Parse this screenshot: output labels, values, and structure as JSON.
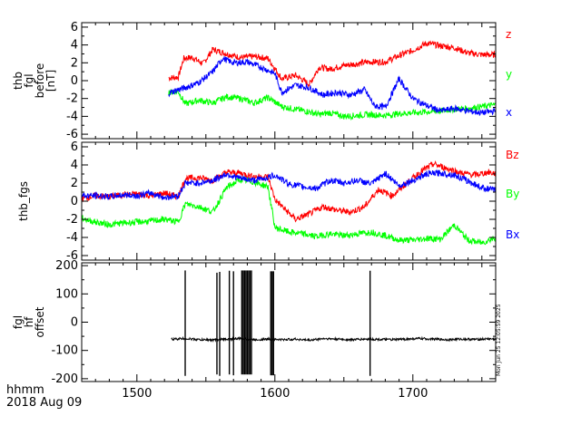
{
  "chart_data": [
    {
      "type": "line",
      "ylabel": [
        "thb",
        "fgl",
        "before",
        "[nT]"
      ],
      "ylim": [
        -6.5,
        6.5
      ],
      "yticks": [
        -6,
        -4,
        -2,
        0,
        2,
        4,
        6
      ],
      "xlim": [
        1460,
        1760
      ],
      "series": [
        {
          "name": "z",
          "color": "#ff0000",
          "x": [
            1523,
            1530,
            1534,
            1540,
            1548,
            1555,
            1565,
            1575,
            1585,
            1595,
            1605,
            1615,
            1625,
            1632,
            1640,
            1650,
            1660,
            1668,
            1680,
            1690,
            1700,
            1710,
            1720,
            1730,
            1740,
            1750,
            1760
          ],
          "y": [
            0.3,
            0.4,
            2.5,
            2.6,
            1.9,
            3.5,
            3.0,
            2.6,
            2.7,
            2.5,
            0.2,
            0.6,
            -0.4,
            1.5,
            1.3,
            1.7,
            1.9,
            2.1,
            2.1,
            2.8,
            3.4,
            4.2,
            3.9,
            3.7,
            3.1,
            2.9,
            2.9
          ]
        },
        {
          "name": "y",
          "color": "#00ff00",
          "x": [
            1523,
            1530,
            1535,
            1545,
            1555,
            1565,
            1575,
            1585,
            1595,
            1605,
            1615,
            1625,
            1632,
            1640,
            1650,
            1660,
            1668,
            1680,
            1690,
            1700,
            1710,
            1720,
            1730,
            1740,
            1750,
            1760
          ],
          "y": [
            -1.3,
            -1.2,
            -2.6,
            -2.2,
            -2.5,
            -1.8,
            -2.0,
            -2.5,
            -1.9,
            -2.9,
            -3.2,
            -3.5,
            -3.8,
            -3.6,
            -4.0,
            -3.9,
            -3.8,
            -3.9,
            -3.7,
            -3.6,
            -3.5,
            -3.4,
            -3.2,
            -3.1,
            -2.9,
            -2.7
          ]
        },
        {
          "name": "x",
          "color": "#0000ff",
          "x": [
            1523,
            1530,
            1535,
            1545,
            1555,
            1562,
            1570,
            1580,
            1590,
            1600,
            1605,
            1615,
            1625,
            1635,
            1645,
            1655,
            1665,
            1672,
            1680,
            1690,
            1700,
            1710,
            1720,
            1730,
            1740,
            1750,
            1760
          ],
          "y": [
            -1.4,
            -1.0,
            -0.8,
            -0.2,
            1.0,
            2.5,
            2.0,
            2.1,
            1.5,
            0.8,
            -1.3,
            -0.5,
            -0.8,
            -1.6,
            -1.3,
            -1.6,
            -1.0,
            -2.8,
            -3.0,
            0.2,
            -2.0,
            -2.8,
            -3.4,
            -3.1,
            -3.4,
            -3.6,
            -3.4
          ]
        }
      ]
    },
    {
      "type": "line",
      "ylabel": [
        "thb_fgs"
      ],
      "ylim": [
        -6.5,
        6.5
      ],
      "yticks": [
        -6,
        -4,
        -2,
        0,
        2,
        4,
        6
      ],
      "xlim": [
        1460,
        1760
      ],
      "series": [
        {
          "name": "Bz",
          "color": "#ff0000",
          "x": [
            1460,
            1470,
            1480,
            1490,
            1500,
            1510,
            1520,
            1530,
            1535,
            1545,
            1555,
            1565,
            1575,
            1585,
            1595,
            1600,
            1608,
            1615,
            1625,
            1635,
            1645,
            1655,
            1665,
            1675,
            1685,
            1695,
            1705,
            1715,
            1725,
            1735,
            1745,
            1755,
            1760
          ],
          "y": [
            0.3,
            0.6,
            0.5,
            0.7,
            0.8,
            0.6,
            0.9,
            0.5,
            2.5,
            2.6,
            2.3,
            3.2,
            3.1,
            2.7,
            2.7,
            0.2,
            -1.0,
            -2.0,
            -1.4,
            -0.6,
            -1.0,
            -1.2,
            -0.6,
            1.3,
            0.6,
            1.9,
            3.2,
            4.1,
            3.6,
            3.1,
            2.9,
            3.2,
            3.0
          ]
        },
        {
          "name": "By",
          "color": "#00ff00",
          "x": [
            1460,
            1470,
            1480,
            1490,
            1500,
            1510,
            1520,
            1530,
            1535,
            1545,
            1555,
            1565,
            1575,
            1585,
            1595,
            1600,
            1610,
            1620,
            1630,
            1640,
            1650,
            1660,
            1670,
            1680,
            1690,
            1700,
            1710,
            1720,
            1730,
            1740,
            1750,
            1760
          ],
          "y": [
            -1.9,
            -2.3,
            -2.6,
            -2.4,
            -2.3,
            -2.2,
            -2.0,
            -2.3,
            -0.3,
            -0.6,
            -1.2,
            1.5,
            2.4,
            2.1,
            1.6,
            -2.9,
            -3.4,
            -3.6,
            -3.9,
            -3.6,
            -3.8,
            -3.6,
            -3.4,
            -3.8,
            -4.3,
            -4.3,
            -4.1,
            -4.2,
            -2.6,
            -4.3,
            -4.6,
            -4.0
          ]
        },
        {
          "name": "Bx",
          "color": "#0000ff",
          "x": [
            1460,
            1470,
            1480,
            1490,
            1500,
            1510,
            1520,
            1530,
            1535,
            1545,
            1555,
            1565,
            1575,
            1585,
            1595,
            1600,
            1610,
            1620,
            1630,
            1640,
            1650,
            1660,
            1670,
            1680,
            1690,
            1700,
            1710,
            1720,
            1730,
            1740,
            1750,
            1760
          ],
          "y": [
            0.6,
            0.6,
            0.5,
            0.7,
            0.6,
            0.9,
            0.4,
            0.6,
            2.0,
            2.0,
            2.3,
            3.0,
            2.5,
            2.3,
            2.6,
            2.9,
            1.9,
            1.6,
            1.4,
            2.3,
            2.0,
            2.3,
            1.9,
            3.1,
            1.7,
            2.3,
            3.0,
            3.1,
            2.9,
            2.2,
            1.5,
            1.2
          ]
        }
      ]
    },
    {
      "type": "line",
      "ylabel": [
        "fgl",
        "hf",
        "offset"
      ],
      "ylim": [
        -210,
        210
      ],
      "yticks": [
        -200,
        -100,
        0,
        100,
        200
      ],
      "xlim": [
        1460,
        1760
      ],
      "xticks": [
        1500,
        1600,
        1700
      ],
      "series": [
        {
          "name": "",
          "color": "#000000",
          "x": [
            1525,
            1535,
            1545,
            1555,
            1565,
            1575,
            1585,
            1595,
            1605,
            1615,
            1625,
            1635,
            1645,
            1655,
            1665,
            1675,
            1685,
            1695,
            1705,
            1715,
            1725,
            1735,
            1745,
            1755,
            1760
          ],
          "y": [
            -60,
            -58,
            -62,
            -63,
            -60,
            -58,
            -62,
            -60,
            -62,
            -60,
            -64,
            -58,
            -60,
            -62,
            -60,
            -61,
            -62,
            -60,
            -58,
            -60,
            -62,
            -60,
            -61,
            -59,
            -60
          ],
          "spikes": [
            {
              "x": 1535,
              "min": -190,
              "max": 183
            },
            {
              "x": 1558,
              "min": -185,
              "max": 175
            },
            {
              "x": 1560,
              "min": -190,
              "max": 178
            },
            {
              "x": 1567,
              "min": -185,
              "max": 182
            },
            {
              "x": 1570,
              "min": -188,
              "max": 180
            },
            {
              "x": 1576,
              "min": -185,
              "max": 183
            },
            {
              "x": 1577,
              "min": -185,
              "max": 183
            },
            {
              "x": 1578,
              "min": -185,
              "max": 183
            },
            {
              "x": 1579,
              "min": -185,
              "max": 183
            },
            {
              "x": 1580,
              "min": -185,
              "max": 183
            },
            {
              "x": 1581,
              "min": -185,
              "max": 183
            },
            {
              "x": 1582,
              "min": -185,
              "max": 183
            },
            {
              "x": 1583,
              "min": -185,
              "max": 183
            },
            {
              "x": 1597,
              "min": -188,
              "max": 180
            },
            {
              "x": 1598,
              "min": -188,
              "max": 180
            },
            {
              "x": 1599,
              "min": -188,
              "max": 180
            },
            {
              "x": 1669,
              "min": -190,
              "max": 182
            }
          ]
        }
      ]
    }
  ],
  "panel1_legend": [
    "z",
    "y",
    "x"
  ],
  "panel2_legend": [
    "Bz",
    "By",
    "Bx"
  ],
  "timestamp_vertical": "Mon Jun 25 12:05:59 2025",
  "footer": {
    "line1": "hhmm",
    "line2": "2018 Aug 09"
  }
}
